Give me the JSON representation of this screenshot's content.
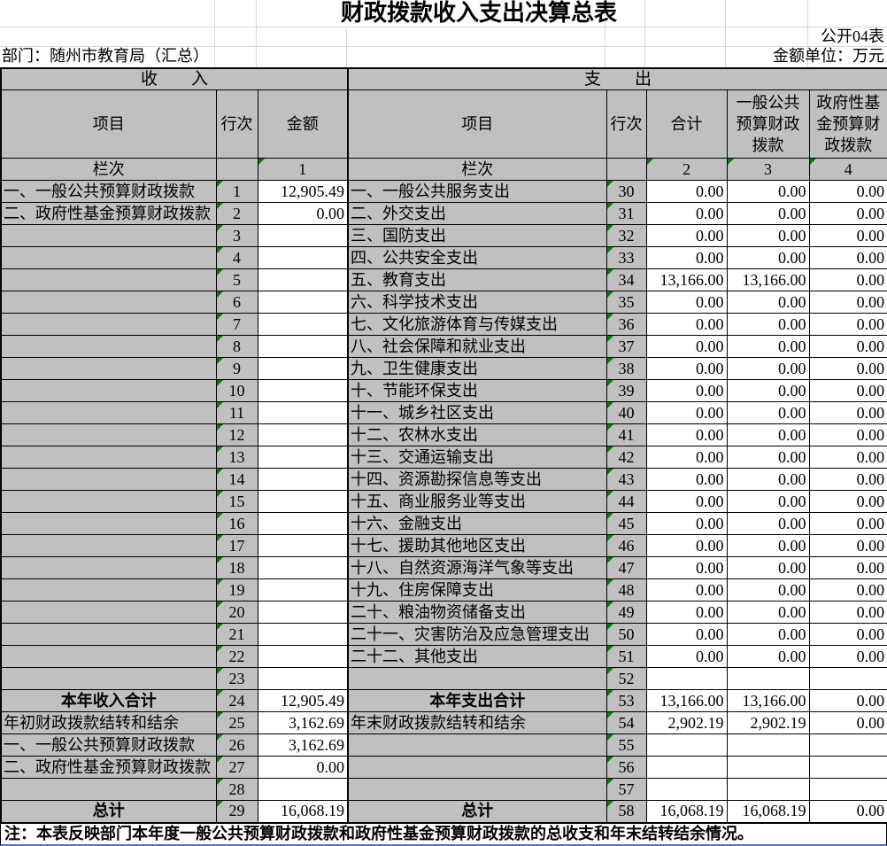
{
  "page": {
    "title": "财政拨款收入支出决算总表",
    "form_code": "公开04表",
    "department": "部门：随州市教育局（汇总）",
    "unit": "金额单位：万元",
    "note": "注：本表反映部门本年度一般公共预算财政拨款和政府性基金预算财政拨款的总收支和年末结转结余情况。"
  },
  "table": {
    "income_banner": "收　　入",
    "expenditure_banner": "支　　出",
    "headers": {
      "item": "项目",
      "line_no": "行次",
      "amount": "金额",
      "total": "合计",
      "general_budget": "一般公共预算财政拨款",
      "gov_fund": "政府性基金预算财政拨款",
      "column_label": "栏次",
      "col_numbers": [
        "1",
        "2",
        "3",
        "4"
      ]
    },
    "colors": {
      "header_bg": "#c0c0c0",
      "flag_green": "#008000",
      "border": "#000000",
      "gridline": "#d9d9d9",
      "pagebreak_blue": "#5570cf"
    },
    "rows": [
      {
        "in_item": "一、一般公共预算财政拨款",
        "in_line": "1",
        "in_amount": "12,905.49",
        "in_b": false,
        "ex_item": "一、一般公共服务支出",
        "ex_line": "30",
        "ex_total": "0.00",
        "ex_general": "0.00",
        "ex_fund": "0.00",
        "ex_b": false
      },
      {
        "in_item": "二、政府性基金预算财政拨款",
        "in_line": "2",
        "in_amount": "0.00",
        "in_b": false,
        "ex_item": "二、外交支出",
        "ex_line": "31",
        "ex_total": "0.00",
        "ex_general": "0.00",
        "ex_fund": "0.00",
        "ex_b": false
      },
      {
        "in_item": "",
        "in_line": "3",
        "in_amount": "",
        "in_b": false,
        "ex_item": "三、国防支出",
        "ex_line": "32",
        "ex_total": "0.00",
        "ex_general": "0.00",
        "ex_fund": "0.00",
        "ex_b": false
      },
      {
        "in_item": "",
        "in_line": "4",
        "in_amount": "",
        "in_b": false,
        "ex_item": "四、公共安全支出",
        "ex_line": "33",
        "ex_total": "0.00",
        "ex_general": "0.00",
        "ex_fund": "0.00",
        "ex_b": false
      },
      {
        "in_item": "",
        "in_line": "5",
        "in_amount": "",
        "in_b": false,
        "ex_item": "五、教育支出",
        "ex_line": "34",
        "ex_total": "13,166.00",
        "ex_general": "13,166.00",
        "ex_fund": "0.00",
        "ex_b": false
      },
      {
        "in_item": "",
        "in_line": "6",
        "in_amount": "",
        "in_b": false,
        "ex_item": "六、科学技术支出",
        "ex_line": "35",
        "ex_total": "0.00",
        "ex_general": "0.00",
        "ex_fund": "0.00",
        "ex_b": false
      },
      {
        "in_item": "",
        "in_line": "7",
        "in_amount": "",
        "in_b": false,
        "ex_item": "七、文化旅游体育与传媒支出",
        "ex_line": "36",
        "ex_total": "0.00",
        "ex_general": "0.00",
        "ex_fund": "0.00",
        "ex_b": false
      },
      {
        "in_item": "",
        "in_line": "8",
        "in_amount": "",
        "in_b": false,
        "ex_item": "八、社会保障和就业支出",
        "ex_line": "37",
        "ex_total": "0.00",
        "ex_general": "0.00",
        "ex_fund": "0.00",
        "ex_b": false
      },
      {
        "in_item": "",
        "in_line": "9",
        "in_amount": "",
        "in_b": false,
        "ex_item": "九、卫生健康支出",
        "ex_line": "38",
        "ex_total": "0.00",
        "ex_general": "0.00",
        "ex_fund": "0.00",
        "ex_b": false
      },
      {
        "in_item": "",
        "in_line": "10",
        "in_amount": "",
        "in_b": false,
        "ex_item": "十、节能环保支出",
        "ex_line": "39",
        "ex_total": "0.00",
        "ex_general": "0.00",
        "ex_fund": "0.00",
        "ex_b": false
      },
      {
        "in_item": "",
        "in_line": "11",
        "in_amount": "",
        "in_b": false,
        "ex_item": "十一、城乡社区支出",
        "ex_line": "40",
        "ex_total": "0.00",
        "ex_general": "0.00",
        "ex_fund": "0.00",
        "ex_b": false
      },
      {
        "in_item": "",
        "in_line": "12",
        "in_amount": "",
        "in_b": false,
        "ex_item": "十二、农林水支出",
        "ex_line": "41",
        "ex_total": "0.00",
        "ex_general": "0.00",
        "ex_fund": "0.00",
        "ex_b": false
      },
      {
        "in_item": "",
        "in_line": "13",
        "in_amount": "",
        "in_b": false,
        "ex_item": "十三、交通运输支出",
        "ex_line": "42",
        "ex_total": "0.00",
        "ex_general": "0.00",
        "ex_fund": "0.00",
        "ex_b": false
      },
      {
        "in_item": "",
        "in_line": "14",
        "in_amount": "",
        "in_b": false,
        "ex_item": "十四、资源勘探信息等支出",
        "ex_line": "43",
        "ex_total": "0.00",
        "ex_general": "0.00",
        "ex_fund": "0.00",
        "ex_b": false
      },
      {
        "in_item": "",
        "in_line": "15",
        "in_amount": "",
        "in_b": false,
        "ex_item": "十五、商业服务业等支出",
        "ex_line": "44",
        "ex_total": "0.00",
        "ex_general": "0.00",
        "ex_fund": "0.00",
        "ex_b": false
      },
      {
        "in_item": "",
        "in_line": "16",
        "in_amount": "",
        "in_b": false,
        "ex_item": "十六、金融支出",
        "ex_line": "45",
        "ex_total": "0.00",
        "ex_general": "0.00",
        "ex_fund": "0.00",
        "ex_b": false
      },
      {
        "in_item": "",
        "in_line": "17",
        "in_amount": "",
        "in_b": false,
        "ex_item": "十七、援助其他地区支出",
        "ex_line": "46",
        "ex_total": "0.00",
        "ex_general": "0.00",
        "ex_fund": "0.00",
        "ex_b": false
      },
      {
        "in_item": "",
        "in_line": "18",
        "in_amount": "",
        "in_b": false,
        "ex_item": "十八、自然资源海洋气象等支出",
        "ex_line": "47",
        "ex_total": "0.00",
        "ex_general": "0.00",
        "ex_fund": "0.00",
        "ex_b": false
      },
      {
        "in_item": "",
        "in_line": "19",
        "in_amount": "",
        "in_b": false,
        "ex_item": "十九、住房保障支出",
        "ex_line": "48",
        "ex_total": "0.00",
        "ex_general": "0.00",
        "ex_fund": "0.00",
        "ex_b": false
      },
      {
        "in_item": "",
        "in_line": "20",
        "in_amount": "",
        "in_b": false,
        "ex_item": "二十、粮油物资储备支出",
        "ex_line": "49",
        "ex_total": "0.00",
        "ex_general": "0.00",
        "ex_fund": "0.00",
        "ex_b": false
      },
      {
        "in_item": "",
        "in_line": "21",
        "in_amount": "",
        "in_b": false,
        "ex_item": "二十一、灾害防治及应急管理支出",
        "ex_line": "50",
        "ex_total": "0.00",
        "ex_general": "0.00",
        "ex_fund": "0.00",
        "ex_b": false
      },
      {
        "in_item": "",
        "in_line": "22",
        "in_amount": "",
        "in_b": false,
        "ex_item": "二十二、其他支出",
        "ex_line": "51",
        "ex_total": "0.00",
        "ex_general": "0.00",
        "ex_fund": "0.00",
        "ex_b": false
      },
      {
        "in_item": "",
        "in_line": "23",
        "in_amount": "",
        "in_b": false,
        "ex_item": "",
        "ex_line": "52",
        "ex_total": "",
        "ex_general": "",
        "ex_fund": "",
        "ex_b": false
      },
      {
        "in_item": "本年收入合计",
        "in_line": "24",
        "in_amount": "12,905.49",
        "in_b": true,
        "ex_item": "本年支出合计",
        "ex_line": "53",
        "ex_total": "13,166.00",
        "ex_general": "13,166.00",
        "ex_fund": "0.00",
        "ex_b": true
      },
      {
        "in_item": "年初财政拨款结转和结余",
        "in_line": "25",
        "in_amount": "3,162.69",
        "in_b": false,
        "ex_item": "年末财政拨款结转和结余",
        "ex_line": "54",
        "ex_total": "2,902.19",
        "ex_general": "2,902.19",
        "ex_fund": "0.00",
        "ex_b": false
      },
      {
        "in_item": "一、一般公共预算财政拨款",
        "in_line": "26",
        "in_amount": "3,162.69",
        "in_b": false,
        "ex_item": "",
        "ex_line": "55",
        "ex_total": "",
        "ex_general": "",
        "ex_fund": "",
        "ex_b": false
      },
      {
        "in_item": "二、政府性基金预算财政拨款",
        "in_line": "27",
        "in_amount": "0.00",
        "in_b": false,
        "ex_item": "",
        "ex_line": "56",
        "ex_total": "",
        "ex_general": "",
        "ex_fund": "",
        "ex_b": false
      },
      {
        "in_item": "",
        "in_line": "28",
        "in_amount": "",
        "in_b": false,
        "ex_item": "",
        "ex_line": "57",
        "ex_total": "",
        "ex_general": "",
        "ex_fund": "",
        "ex_b": false
      },
      {
        "in_item": "总计",
        "in_line": "29",
        "in_amount": "16,068.19",
        "in_b": true,
        "ex_item": "总计",
        "ex_line": "58",
        "ex_total": "16,068.19",
        "ex_general": "16,068.19",
        "ex_fund": "0.00",
        "ex_b": true
      }
    ]
  }
}
